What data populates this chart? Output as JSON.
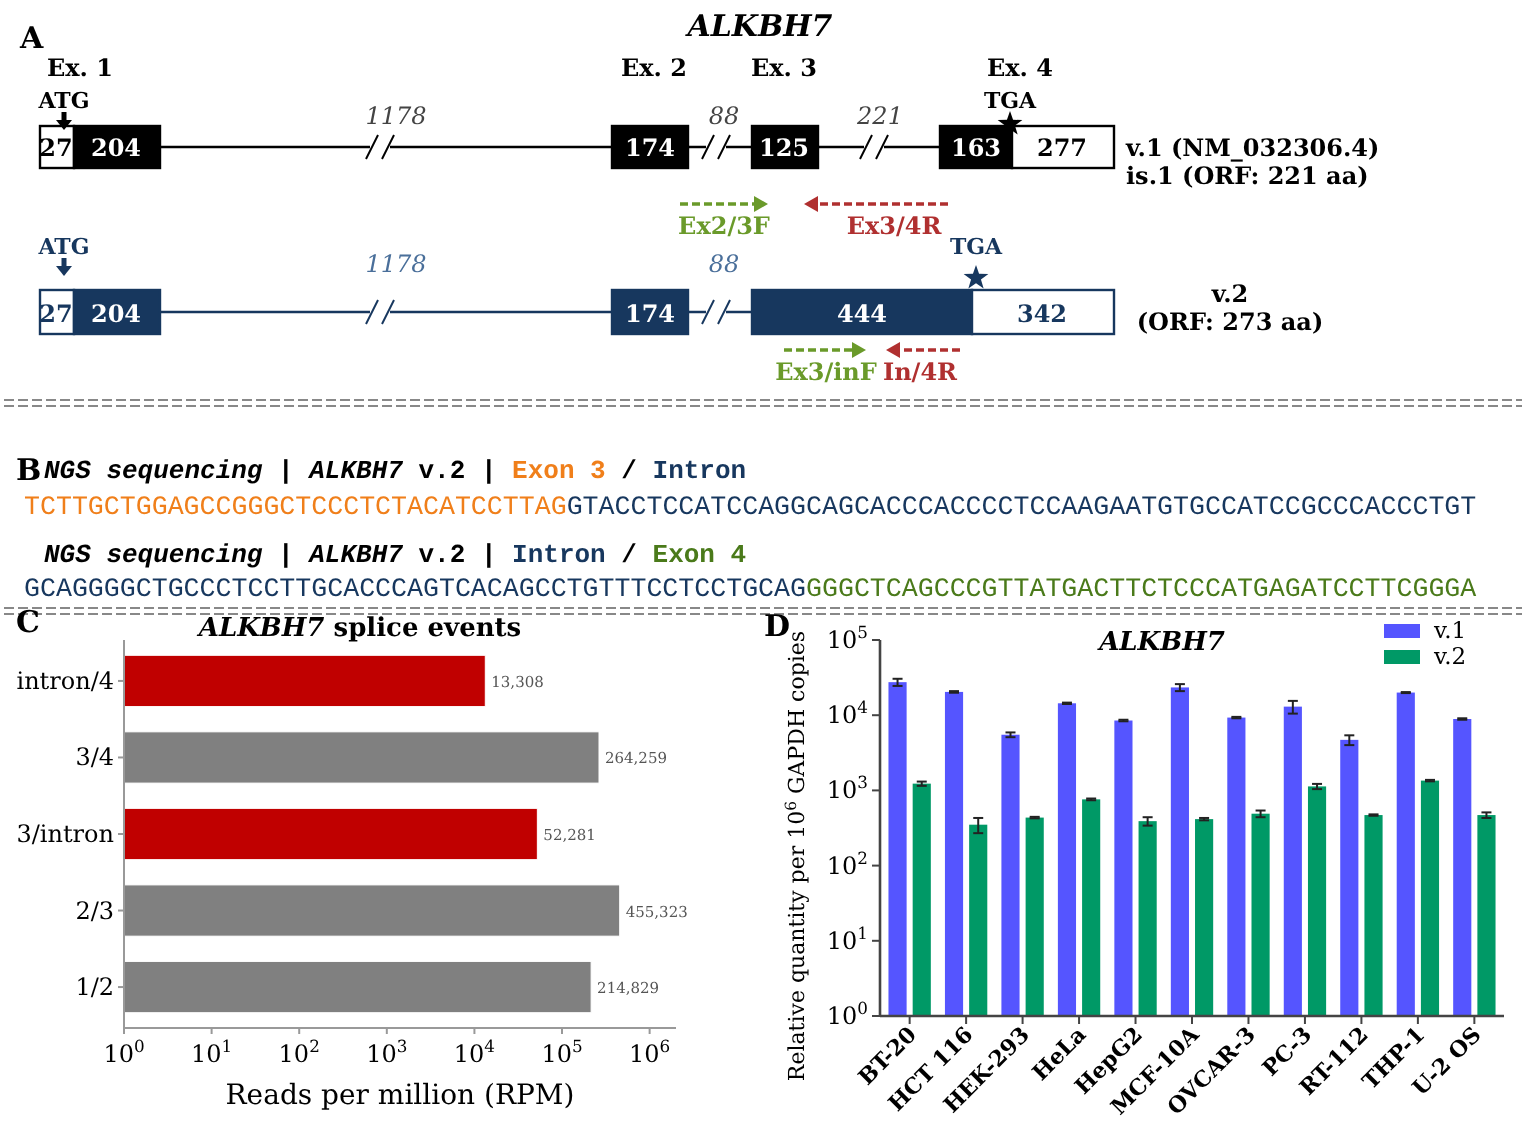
{
  "chart_data": [
    {
      "type": "other",
      "title": "ALKBH7",
      "annotations": [
        "A",
        "Ex. 1",
        "Ex. 2",
        "Ex. 3",
        "Ex. 4",
        "ATG",
        "TGA",
        "1178",
        "88",
        "221",
        "27",
        "204",
        "174",
        "125",
        "163",
        "277",
        "v.1 (NM_032306.4)",
        "is.1 (ORF: 221 aa)",
        "Ex2/3F",
        "Ex3/4R",
        "ATG",
        "TGA",
        "1178",
        "88",
        "27",
        "204",
        "174",
        "444",
        "342",
        "v.2",
        "(ORF: 273 aa)",
        "Ex3/inF",
        "In/4R"
      ]
    },
    {
      "type": "other",
      "annotations": [
        "B",
        "NGS sequencing",
        " | ",
        "ALKBH7",
        " v.2 | ",
        "Exon 3",
        " / ",
        "Intron",
        "TCTTGCTGGAGCCGGGCTCCCTCTACATCCTTAG",
        "GTACCTCCATCCAGGCAGCACCCACCCCTCCAAGAATGTGCCATCCGCCCACCCTGT",
        "NGS sequencing",
        " | ",
        "ALKBH7",
        " v.2 | ",
        "Intron",
        " / ",
        "Exon 4",
        "GCAGGGGCTGCCCTCCTTGCACCCAGTCACAGCCTGTTTCCTCCTGCAG",
        "GGGCTCAGCCCGTTATGACTTCTCCCATGAGATCCTTCGGGA"
      ]
    },
    {
      "type": "bar",
      "orientation": "horizontal",
      "title": "ALKBH7 splice events",
      "xlabel": "Reads per million (RPM)",
      "annotations": [
        "C"
      ],
      "log": "x",
      "categories": [
        "intron/4",
        "3/4",
        "3/intron",
        "2/3",
        "1/2"
      ],
      "values": [
        13308,
        264259,
        52281,
        455323,
        214829
      ],
      "colors": [
        "#c00000",
        "#808080",
        "#c00000",
        "#808080",
        "#808080"
      ],
      "value_labels": [
        "13,308",
        "264,259",
        "52,281",
        "455,323",
        "214,829"
      ],
      "xlim": [
        1,
        2000000
      ],
      "xticks": [
        {
          "value": 1,
          "label": "10$^{0}$"
        },
        {
          "value": 10,
          "label": "10$^{1}$"
        },
        {
          "value": 100,
          "label": "10$^{2}$"
        },
        {
          "value": 1000,
          "label": "10$^{3}$"
        },
        {
          "value": 10000,
          "label": "10$^{4}$"
        },
        {
          "value": 100000,
          "label": "10$^{5}$"
        },
        {
          "value": 1000000,
          "label": "10$^{6}$"
        }
      ]
    },
    {
      "type": "bar",
      "title": "ALKBH7",
      "ylabel": "Relative quantity per 10$^{6}$ GAPDH copies",
      "annotations": [
        "D"
      ],
      "log": "y",
      "legend": "top right",
      "categories": [
        "BT-20",
        "HCT 116",
        "HEK-293",
        "HeLa",
        "HepG2",
        "MCF-10A",
        "OVCAR-3",
        "PC-3",
        "RT-112",
        "THP-1",
        "U-2 OS"
      ],
      "series": [
        {
          "name": "v.1",
          "color": "#5555ff",
          "values": [
            27500,
            20400,
            5500,
            14400,
            8500,
            23400,
            9300,
            13000,
            4700,
            20000,
            8900
          ],
          "errors": [
            3000,
            500,
            400,
            300,
            200,
            2500,
            200,
            2500,
            700,
            300,
            200
          ]
        },
        {
          "name": "v.2",
          "color": "#009966",
          "values": [
            1230,
            350,
            435,
            760,
            390,
            415,
            490,
            1130,
            470,
            1350,
            470
          ],
          "errors": [
            80,
            80,
            10,
            20,
            50,
            15,
            50,
            90,
            10,
            30,
            40
          ]
        }
      ],
      "ylim": [
        1,
        100000
      ],
      "yticks": [
        {
          "value": 1,
          "label": "10$^{0}$"
        },
        {
          "value": 10,
          "label": "10$^{1}$"
        },
        {
          "value": 100,
          "label": "10$^{2}$"
        },
        {
          "value": 1000,
          "label": "10$^{3}$"
        },
        {
          "value": 10000,
          "label": "10$^{4}$"
        },
        {
          "value": 100000,
          "label": "10$^{5}$"
        }
      ]
    }
  ]
}
